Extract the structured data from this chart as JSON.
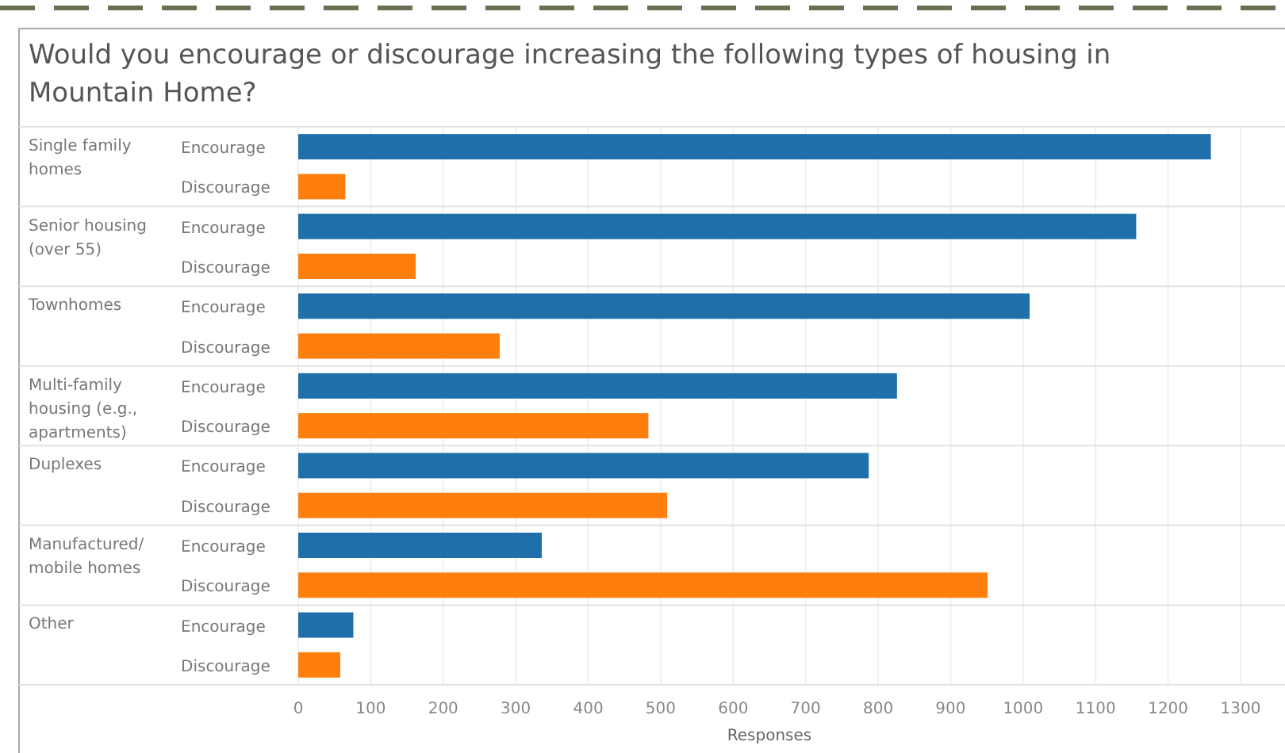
{
  "chart_data": {
    "type": "bar",
    "orientation": "horizontal",
    "title": "Would you encourage or discourage increasing the following types of housing in Mountain Home?",
    "xlabel": "Responses",
    "categories": [
      "Single family homes",
      "Senior housing (over 55)",
      "Townhomes",
      "Multi-family housing (e.g., apartments)",
      "Duplexes",
      "Manufactured/ mobile homes",
      "Other"
    ],
    "series": [
      {
        "name": "Encourage",
        "color": "#1f6fab",
        "values": [
          1259,
          1156,
          1009,
          826,
          787,
          336,
          76
        ]
      },
      {
        "name": "Discourage",
        "color": "#ff7f0e",
        "values": [
          65,
          162,
          278,
          483,
          509,
          951,
          58
        ]
      }
    ],
    "xlim": [
      0,
      1300
    ],
    "xticks": [
      0,
      100,
      200,
      300,
      400,
      500,
      600,
      700,
      800,
      900,
      1000,
      1100,
      1200,
      1300
    ],
    "grid": "x"
  }
}
